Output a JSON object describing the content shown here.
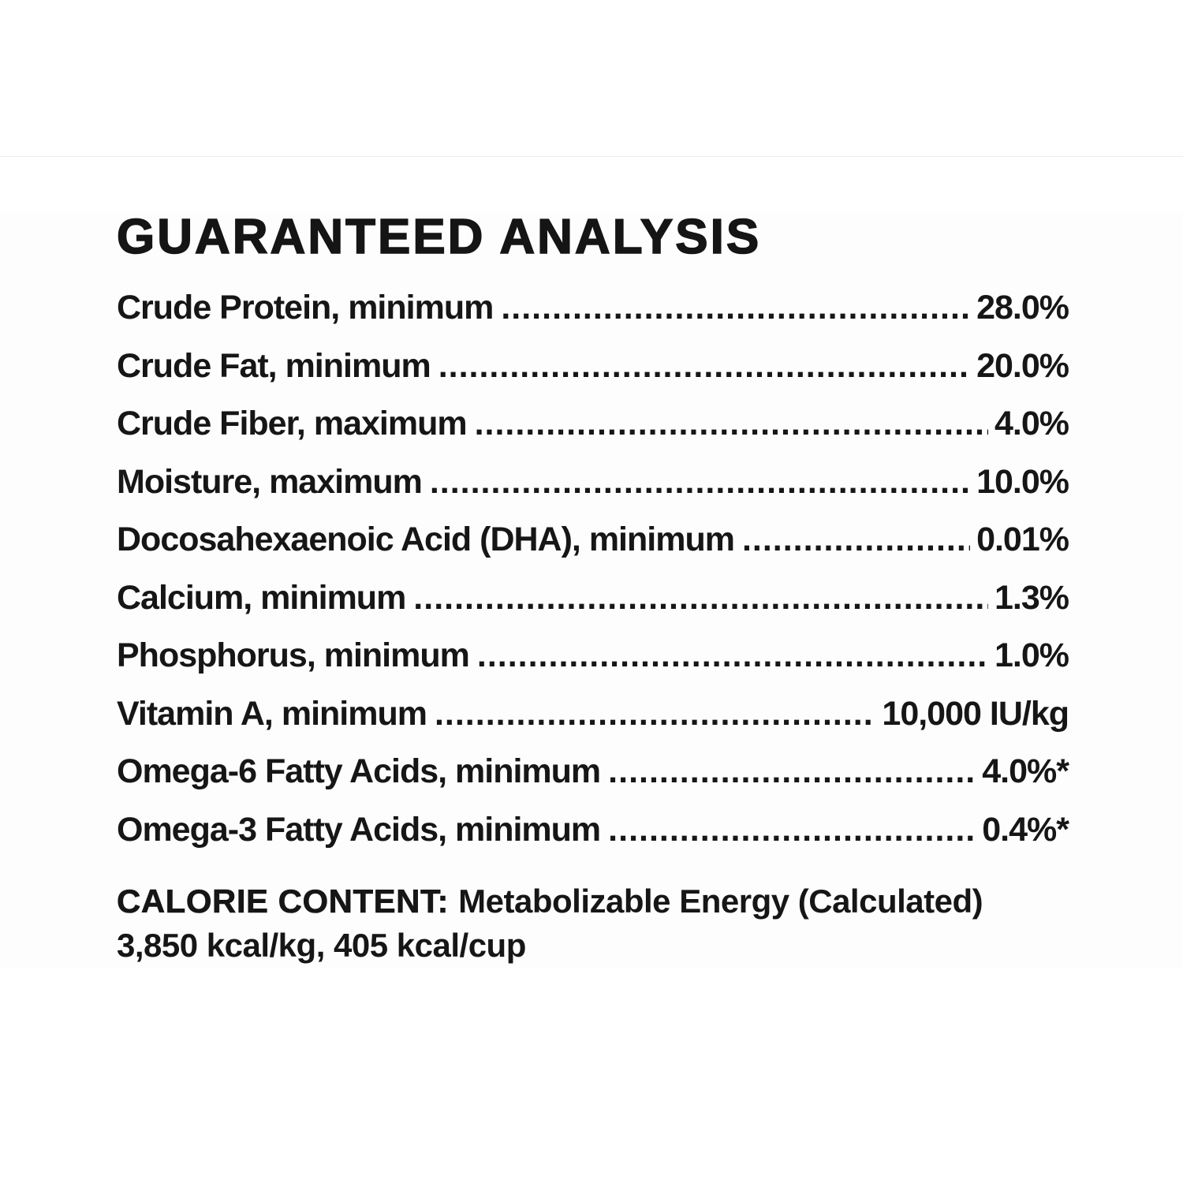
{
  "page": {
    "title": "GUARANTEED ANALYSIS"
  },
  "analysis": {
    "rows": [
      {
        "label": "Crude Protein, minimum",
        "value": "28.0%"
      },
      {
        "label": "Crude Fat, minimum",
        "value": "20.0%"
      },
      {
        "label": "Crude Fiber, maximum",
        "value": "4.0%"
      },
      {
        "label": "Moisture, maximum",
        "value": "10.0%"
      },
      {
        "label": "Docosahexaenoic Acid (DHA), minimum",
        "value": "0.01%"
      },
      {
        "label": "Calcium, minimum",
        "value": "1.3%"
      },
      {
        "label": "Phosphorus, minimum",
        "value": "1.0%"
      },
      {
        "label": "Vitamin A, minimum",
        "value": "10,000 IU/kg"
      },
      {
        "label": "Omega-6 Fatty Acids, minimum",
        "value": "4.0%*"
      },
      {
        "label": "Omega-3 Fatty Acids, minimum",
        "value": "0.4%*"
      }
    ]
  },
  "calorie_content": {
    "heading": "CALORIE CONTENT:",
    "description": "Metabolizable Energy (Calculated)",
    "values_line": "3,850 kcal/kg, 405 kcal/cup"
  },
  "colors": {
    "text": "#161616",
    "background": "#ffffff",
    "divider": "#ededed"
  }
}
